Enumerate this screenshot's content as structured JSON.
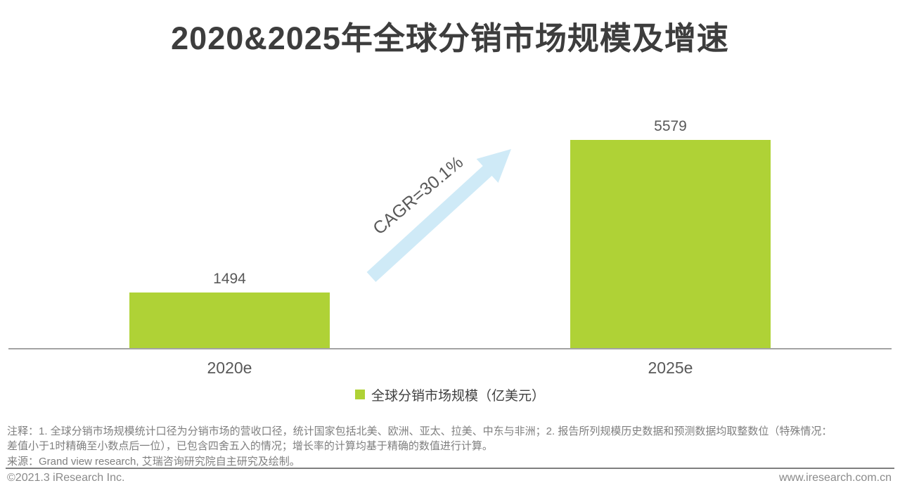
{
  "title": "2020&2025年全球分销市场规模及增速",
  "chart_data": {
    "type": "bar",
    "categories": [
      "2020e",
      "2025e"
    ],
    "values": [
      1494,
      5579
    ],
    "series_name": "全球分销市场规模（亿美元）",
    "ylabel": "",
    "xlabel": "",
    "ylim": [
      0,
      5600
    ],
    "grid": false,
    "legend_position": "bottom",
    "annotation": "CAGR=30.1%",
    "colors": {
      "bar": "#afd236",
      "arrow": "#cfeaf7",
      "value_label": "#595959",
      "axis": "#a3a3a3"
    }
  },
  "legend": {
    "label": "全球分销市场规模（亿美元）"
  },
  "notes": [
    "注释：1. 全球分销市场规模统计口径为分销市场的营收口径，统计国家包括北美、欧洲、亚太、拉美、中东与非洲；2. 报告所列规模历史数据和预测数据均取整数位（特殊情况：",
    "差值小于1时精确至小数点后一位），已包含四舍五入的情况；增长率的计算均基于精确的数值进行计算。"
  ],
  "source": "来源：Grand view research, 艾瑞咨询研究院自主研究及绘制。",
  "footer": {
    "copyright": "©2021.3 iResearch Inc.",
    "website": "www.iresearch.com.cn"
  }
}
